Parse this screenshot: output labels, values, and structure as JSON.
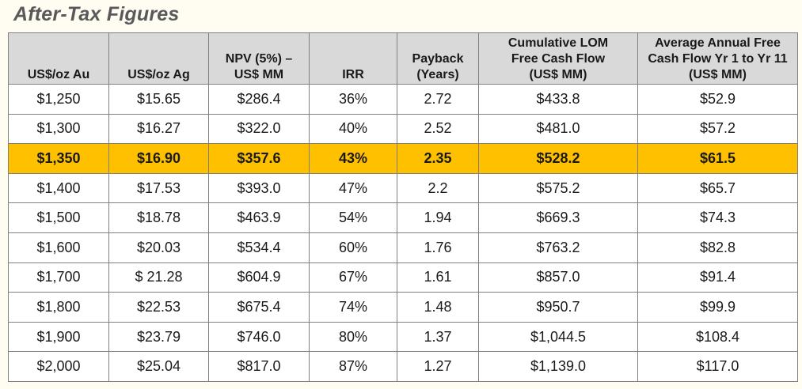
{
  "title": "After-Tax Figures",
  "table": {
    "headers": [
      "US$/oz Au",
      "US$/oz Ag",
      "NPV (5%) –\nUS$ MM",
      "IRR",
      "Payback\n(Years)",
      "Cumulative LOM\nFree Cash Flow\n(US$ MM)",
      "Average Annual Free\nCash Flow Yr 1 to Yr 11\n(US$ MM)"
    ],
    "highlight_row_index": 2,
    "highlight_color": "#ffc000",
    "rows": [
      [
        "$1,250",
        "$15.65",
        "$286.4",
        "36%",
        "2.72",
        "$433.8",
        "$52.9"
      ],
      [
        "$1,300",
        "$16.27",
        "$322.0",
        "40%",
        "2.52",
        "$481.0",
        "$57.2"
      ],
      [
        "$1,350",
        "$16.90",
        "$357.6",
        "43%",
        "2.35",
        "$528.2",
        "$61.5"
      ],
      [
        "$1,400",
        "$17.53",
        "$393.0",
        "47%",
        "2.2",
        "$575.2",
        "$65.7"
      ],
      [
        "$1,500",
        "$18.78",
        "$463.9",
        "54%",
        "1.94",
        "$669.3",
        "$74.3"
      ],
      [
        "$1,600",
        "$20.03",
        "$534.4",
        "60%",
        "1.76",
        "$763.2",
        "$82.8"
      ],
      [
        "$1,700",
        "$ 21.28",
        "$604.9",
        "67%",
        "1.61",
        "$857.0",
        "$91.4"
      ],
      [
        "$1,800",
        "$22.53",
        "$675.4",
        "74%",
        "1.48",
        "$950.7",
        "$99.9"
      ],
      [
        "$1,900",
        "$23.79",
        "$746.0",
        "80%",
        "1.37",
        "$1,044.5",
        "$108.4"
      ],
      [
        "$2,000",
        "$25.04",
        "$817.0",
        "87%",
        "1.27",
        "$1,139.0",
        "$117.0"
      ]
    ]
  }
}
